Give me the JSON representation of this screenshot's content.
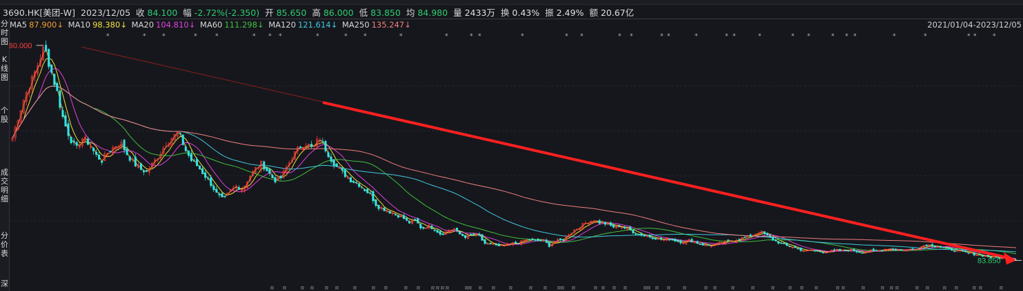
{
  "quote": {
    "symbol": "3690.HK[美团-W]",
    "date": "2023/12/05",
    "close_label": "收",
    "close": "84.100",
    "change_label": "幅",
    "change": "-2.72%(-2.350)",
    "open_label": "开",
    "open": "85.650",
    "high_label": "高",
    "high": "86.000",
    "low_label": "低",
    "low": "83.850",
    "avg_label": "均",
    "avg": "84.980",
    "volume_label": "量",
    "volume": "2433万",
    "turnover_label": "换",
    "turnover": "0.43%",
    "amplitude_label": "振",
    "amplitude": "2.49%",
    "amount_label": "额",
    "amount": "20.67亿"
  },
  "ma_bar": [
    {
      "label": "MA5",
      "value": "87.900↓",
      "color": "#f0a030"
    },
    {
      "label": "MA10",
      "value": "98.380↓",
      "color": "#f0e040"
    },
    {
      "label": "MA20",
      "value": "104.810↓",
      "color": "#e040e0"
    },
    {
      "label": "MA60",
      "value": "111.298↓",
      "color": "#40c040"
    },
    {
      "label": "MA120",
      "value": "121.614↓",
      "color": "#40c8e0"
    },
    {
      "label": "MA250",
      "value": "135.247↓",
      "color": "#f08080"
    }
  ],
  "date_range": "2021/01/04-2023/12/05",
  "sidebar": {
    "tab_fenshi": "分时图",
    "tab_kline": "K线图",
    "tab_ge": "个股",
    "tab_chengjiao": "成交明细",
    "tab_fenjia": "分价表",
    "tab_more": "深"
  },
  "colors": {
    "up": "#ff3b3b",
    "down": "#2ee6e6",
    "trendline": "#ff2020",
    "background": "#16171c"
  },
  "chart_data": {
    "type": "candlestick",
    "symbol": "3690.HK",
    "period": "2021/01/04-2023/12/05",
    "ylim": [
      75,
      470
    ],
    "max_marker": "460.000",
    "min_marker": "83.850",
    "trend_arrow": {
      "from": [
        0,
        460
      ],
      "to": [
        1,
        84
      ]
    },
    "close_series": [
      300,
      340,
      375,
      400,
      430,
      460,
      420,
      380,
      330,
      300,
      280,
      300,
      290,
      270,
      260,
      275,
      285,
      290,
      270,
      255,
      245,
      240,
      255,
      270,
      290,
      300,
      310,
      280,
      260,
      250,
      235,
      220,
      200,
      190,
      205,
      215,
      210,
      230,
      245,
      255,
      240,
      225,
      230,
      250,
      270,
      285,
      290,
      280,
      300,
      280,
      260,
      245,
      235,
      225,
      220,
      210,
      200,
      180,
      175,
      170,
      165,
      160,
      150,
      155,
      140,
      145,
      140,
      130,
      135,
      140,
      130,
      125,
      130,
      128,
      110,
      115,
      108,
      110,
      113,
      115,
      118,
      122,
      118,
      120,
      110,
      118,
      120,
      130,
      138,
      145,
      152,
      155,
      150,
      148,
      143,
      145,
      140,
      135,
      130,
      128,
      125,
      122,
      120,
      122,
      118,
      116,
      120,
      115,
      112,
      110,
      112,
      115,
      118,
      120,
      123,
      125,
      130,
      135,
      128,
      120,
      115,
      110,
      108,
      104,
      100,
      102,
      100,
      99,
      100,
      102,
      101,
      103,
      100,
      98,
      101,
      100,
      103,
      105,
      104,
      102,
      103,
      104,
      108,
      112,
      110,
      108,
      105,
      103,
      100,
      98,
      96,
      94,
      92,
      90,
      89,
      88,
      87,
      84.1
    ]
  }
}
